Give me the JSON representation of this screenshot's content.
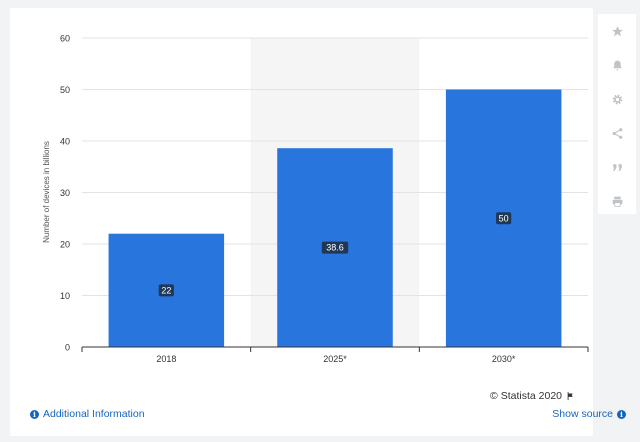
{
  "chart_data": {
    "type": "bar",
    "categories": [
      "2018",
      "2025*",
      "2030*"
    ],
    "values": [
      22,
      38.6,
      50
    ],
    "value_labels": [
      "22",
      "38.6",
      "50"
    ],
    "title": "",
    "xlabel": "",
    "ylabel": "Number of devices in billions",
    "ylim": [
      0,
      60
    ],
    "yticks": [
      0,
      10,
      20,
      30,
      40,
      50,
      60
    ],
    "grid": true,
    "highlight_category": "2025*",
    "bar_color": "#2876dd",
    "highlight_bg": "#f5f5f5"
  },
  "footer": {
    "additional_info": "Additional Information",
    "copyright": "© Statista 2020",
    "show_source": "Show source"
  },
  "toolbar": {
    "icons": [
      "star-icon",
      "bell-icon",
      "gear-icon",
      "share-icon",
      "quote-icon",
      "print-icon"
    ],
    "icon_color": "#c0c4c8"
  }
}
